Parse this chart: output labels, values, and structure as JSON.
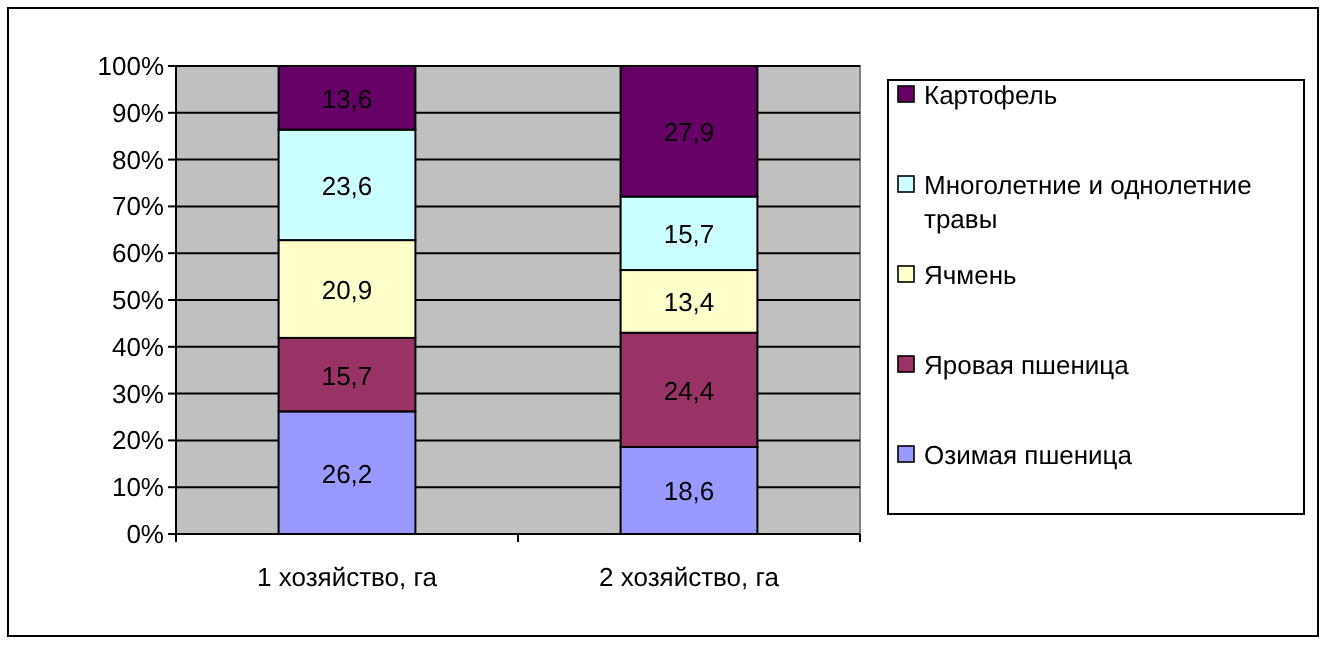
{
  "chart_data": {
    "type": "bar",
    "stacked": true,
    "categories": [
      "1 хозяйство, га",
      "2 хозяйство, га"
    ],
    "series": [
      {
        "name": "Озимая пшеница",
        "color": "#9999ff",
        "values": [
          26.2,
          18.6
        ],
        "value_labels": [
          "26,2",
          "18,6"
        ]
      },
      {
        "name": "Яровая пшеница",
        "color": "#993366",
        "values": [
          15.7,
          24.4
        ],
        "value_labels": [
          "15,7",
          "24,4"
        ]
      },
      {
        "name": "Ячмень",
        "color": "#ffffcc",
        "values": [
          20.9,
          13.4
        ],
        "value_labels": [
          "20,9",
          "13,4"
        ]
      },
      {
        "name": "Многолетние и однолетние травы",
        "color": "#ccffff",
        "values": [
          23.6,
          15.7
        ],
        "value_labels": [
          "23,6",
          "15,7"
        ]
      },
      {
        "name": "Картофель",
        "color": "#660066",
        "values": [
          13.6,
          27.9
        ],
        "value_labels": [
          "13,6",
          "27,9"
        ]
      }
    ],
    "ylim": [
      0,
      100
    ],
    "yticks": [
      {
        "value": 0,
        "label": "0%"
      },
      {
        "value": 10,
        "label": "10%"
      },
      {
        "value": 20,
        "label": "20%"
      },
      {
        "value": 30,
        "label": "30%"
      },
      {
        "value": 40,
        "label": "40%"
      },
      {
        "value": 50,
        "label": "50%"
      },
      {
        "value": 60,
        "label": "60%"
      },
      {
        "value": 70,
        "label": "70%"
      },
      {
        "value": 80,
        "label": "80%"
      },
      {
        "value": 90,
        "label": "90%"
      },
      {
        "value": 100,
        "label": "100%"
      }
    ],
    "grid": "y",
    "legend": "right"
  }
}
